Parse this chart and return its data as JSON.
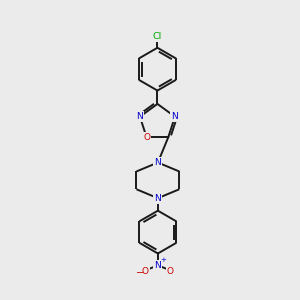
{
  "bg_color": "#ebebeb",
  "bond_color": "#1a1a1a",
  "N_color": "#0000cc",
  "O_color": "#cc0000",
  "Cl_color": "#00aa00",
  "lw": 1.4,
  "figsize": [
    3.0,
    3.0
  ],
  "dpi": 100,
  "xlim": [
    0,
    10
  ],
  "ylim": [
    0,
    10
  ],
  "font_size": 6.5
}
